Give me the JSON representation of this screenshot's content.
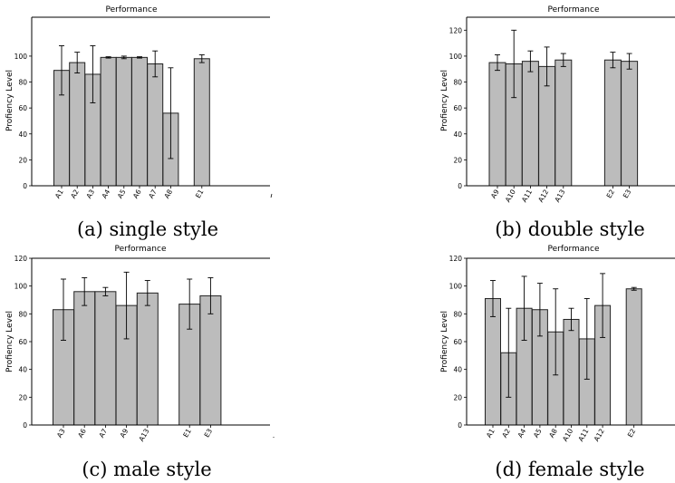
{
  "chart_data": [
    {
      "type": "bar",
      "title": "Performance",
      "ylabel": "Profiency Level",
      "xlabel": "",
      "caption": "(a) single style",
      "ylim": [
        0,
        130
      ],
      "yticks": [
        0,
        20,
        40,
        60,
        80,
        100
      ],
      "categories": [
        "A1",
        "A2",
        "A3",
        "A4",
        "A5",
        "A6",
        "A7",
        "A8",
        "",
        "E1"
      ],
      "values": [
        89,
        95,
        86,
        99,
        99,
        99,
        94,
        56,
        null,
        98
      ],
      "error": [
        19,
        8,
        22,
        0.5,
        1,
        0.5,
        10,
        35,
        null,
        3
      ]
    },
    {
      "type": "bar",
      "title": "Performance",
      "ylabel": "Profiency Level",
      "xlabel": "",
      "caption": "(b) double style",
      "ylim": [
        0,
        130
      ],
      "yticks": [
        0,
        20,
        40,
        60,
        80,
        100,
        120
      ],
      "categories": [
        "A9",
        "A10",
        "A11",
        "A12",
        "A13",
        "",
        "",
        "E2",
        "E3"
      ],
      "values": [
        95,
        94,
        96,
        92,
        97,
        null,
        null,
        97,
        96
      ],
      "error": [
        6,
        26,
        8,
        15,
        5,
        null,
        null,
        6,
        6
      ]
    },
    {
      "type": "bar",
      "title": "Performance",
      "ylabel": "Profiency Level",
      "xlabel": "",
      "caption": "(c) male style",
      "ylim": [
        0,
        120
      ],
      "yticks": [
        0,
        20,
        40,
        60,
        80,
        100,
        120
      ],
      "categories": [
        "A3",
        "A6",
        "A7",
        "A9",
        "A13",
        "",
        "E1",
        "E3"
      ],
      "values": [
        83,
        96,
        96,
        86,
        95,
        null,
        87,
        93
      ],
      "error": [
        22,
        10,
        3,
        24,
        9,
        null,
        18,
        13
      ]
    },
    {
      "type": "bar",
      "title": "Performance",
      "ylabel": "Profiency Level",
      "xlabel": "",
      "caption": "(d) female style",
      "ylim": [
        0,
        120
      ],
      "yticks": [
        0,
        20,
        40,
        60,
        80,
        100,
        120
      ],
      "categories": [
        "A1",
        "A2",
        "A4",
        "A5",
        "A8",
        "A10",
        "A11",
        "A12",
        "",
        "E2"
      ],
      "values": [
        91,
        52,
        84,
        83,
        67,
        76,
        62,
        86,
        null,
        98
      ],
      "error": [
        13,
        32,
        23,
        19,
        31,
        8,
        29,
        23,
        null,
        1
      ]
    }
  ],
  "colors": {
    "bar_fill": "#bcbcbc",
    "bar_stroke": "#222222",
    "axis": "#000000"
  }
}
